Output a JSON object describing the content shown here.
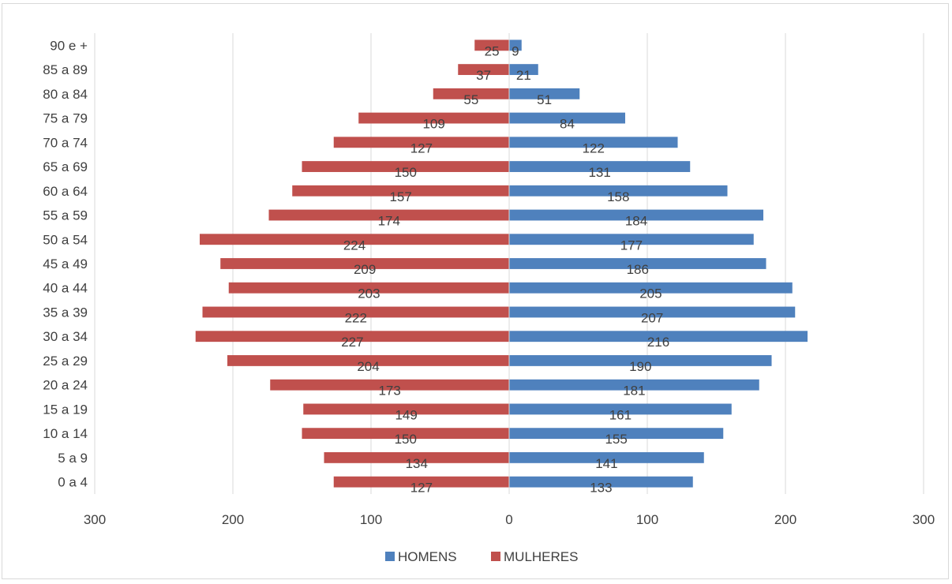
{
  "chart_data": {
    "type": "bar",
    "orientation": "horizontal",
    "layout": "population-pyramid",
    "categories": [
      "0 a 4",
      "5 a 9",
      "10 a 14",
      "15 a 19",
      "20 a 24",
      "25 a 29",
      "30 a 34",
      "35 a 39",
      "40 a 44",
      "45 a 49",
      "50 a 54",
      "55 a 59",
      "60 a 64",
      "65 a 69",
      "70 a 74",
      "75 a 79",
      "80 a 84",
      "85 a 89",
      "90 e +"
    ],
    "series": [
      {
        "name": "HOMENS",
        "color": "#4f81bd",
        "side": "right",
        "values": [
          133,
          141,
          155,
          161,
          181,
          190,
          216,
          207,
          205,
          186,
          177,
          184,
          158,
          131,
          122,
          84,
          51,
          21,
          9
        ]
      },
      {
        "name": "MULHERES",
        "color": "#c0504d",
        "side": "left",
        "values": [
          127,
          134,
          150,
          149,
          173,
          204,
          227,
          222,
          203,
          209,
          224,
          174,
          157,
          150,
          127,
          109,
          55,
          37,
          25
        ]
      }
    ],
    "xlim": [
      -300,
      300
    ],
    "xticks": [
      -300,
      -200,
      -100,
      0,
      100,
      200,
      300
    ],
    "xtick_labels": [
      "300",
      "200",
      "100",
      "0",
      "100",
      "200",
      "300"
    ],
    "grid": "vertical",
    "legend": "bottom-center",
    "title": "",
    "xlabel": "",
    "ylabel": ""
  }
}
